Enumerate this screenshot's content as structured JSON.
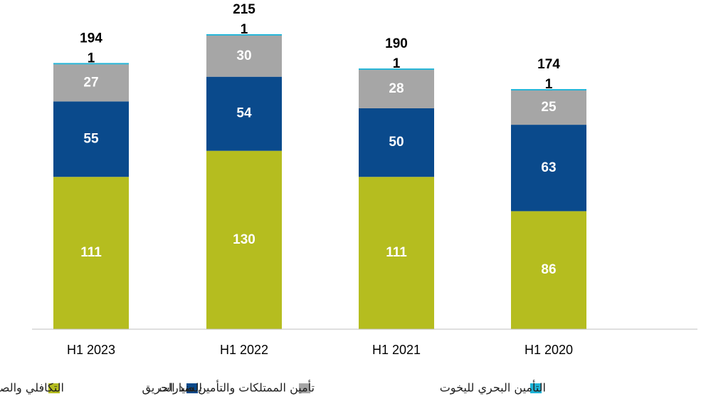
{
  "chart_data": {
    "type": "stacked_bar",
    "categories": [
      "H1 2023",
      "H1 2022",
      "H1 2021",
      "H1 2020"
    ],
    "series": [
      {
        "name": "التكافلي والصحي",
        "color": "#b5bd1f",
        "values": [
          111,
          130,
          111,
          86
        ]
      },
      {
        "name": "السيارات",
        "color": "#0a4a8c",
        "values": [
          55,
          54,
          50,
          63
        ]
      },
      {
        "name": "تأمين الممتلكات والتأمين ضد الحريق",
        "color": "#a6a6a6",
        "values": [
          27,
          30,
          28,
          25
        ]
      },
      {
        "name": "التأمين البحري لليخوت",
        "color": "#1fb3d6",
        "values": [
          1,
          1,
          1,
          1
        ]
      }
    ],
    "totals": [
      194,
      215,
      190,
      174
    ]
  }
}
